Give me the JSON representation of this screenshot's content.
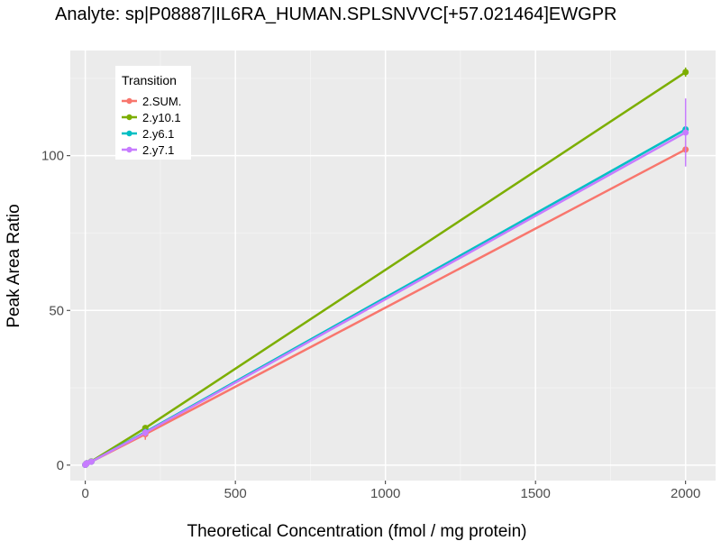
{
  "chart_data": {
    "type": "line",
    "title": "Analyte: sp|P08887|IL6RA_HUMAN.SPLSNVVC[+57.021464]EWGPR",
    "xlabel": "Theoretical Concentration (fmol / mg protein)",
    "ylabel": "Peak Area Ratio",
    "xlim": [
      -50,
      2100
    ],
    "ylim": [
      -5,
      134
    ],
    "xticks": [
      0,
      500,
      1000,
      1500,
      2000
    ],
    "yticks": [
      0,
      50,
      100
    ],
    "grid": true,
    "legend": {
      "title": "Transition",
      "position": "top-left"
    },
    "x": [
      0,
      2,
      5,
      20,
      200,
      2000
    ],
    "series": [
      {
        "name": "2.SUM.",
        "color": "#F8766D",
        "values": [
          0.1,
          0.3,
          0.6,
          1.1,
          10.0,
          102.0
        ],
        "error": [
          0,
          0,
          0,
          0,
          1.8,
          3.0
        ]
      },
      {
        "name": "2.y10.1",
        "color": "#7CAE00",
        "values": [
          0.1,
          0.3,
          0.6,
          1.2,
          12.0,
          127.0
        ],
        "error": [
          0,
          0,
          0,
          0,
          0.8,
          1.5
        ]
      },
      {
        "name": "2.y6.1",
        "color": "#00BFC4",
        "values": [
          0.1,
          0.3,
          0.6,
          1.1,
          10.7,
          108.5
        ],
        "error": [
          0,
          0,
          0,
          0,
          0.5,
          1.0
        ]
      },
      {
        "name": "2.y7.1",
        "color": "#C77CFF",
        "values": [
          0.1,
          0.3,
          0.6,
          1.1,
          10.5,
          107.5
        ],
        "error": [
          0,
          0,
          0,
          0,
          1.2,
          11.0
        ]
      }
    ]
  }
}
